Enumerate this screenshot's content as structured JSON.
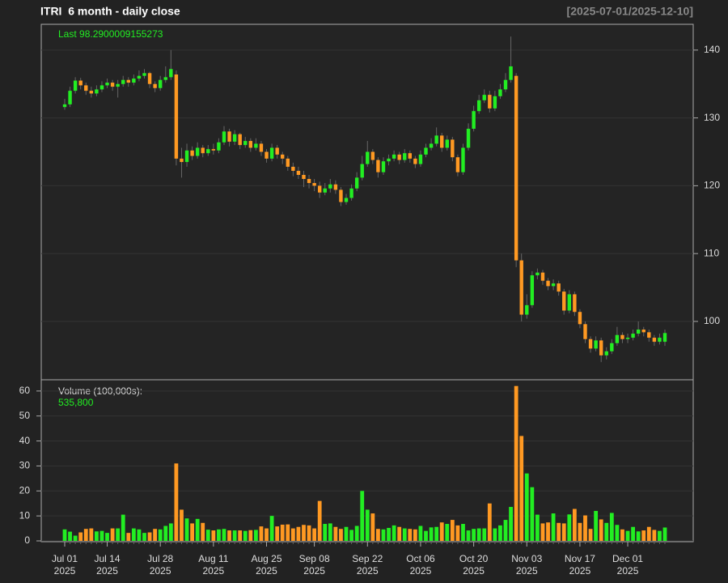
{
  "chart_data": [
    {
      "type": "candlestick",
      "title": "ITRI  6 month - daily close",
      "date_range": "[2025-07-01/2025-12-10]",
      "last_label": "Last 98.2900009155273",
      "up_color": "#22ee22",
      "down_color": "#ff9922",
      "grid": true,
      "categories": [
        {
          "month_day": "Jul 01",
          "year": "2025"
        },
        null,
        null,
        null,
        null,
        null,
        null,
        null,
        {
          "month_day": "Jul 14",
          "year": "2025"
        },
        null,
        null,
        null,
        null,
        null,
        null,
        null,
        null,
        null,
        {
          "month_day": "Jul 28",
          "year": "2025"
        },
        null,
        null,
        null,
        null,
        null,
        null,
        null,
        null,
        null,
        {
          "month_day": "Aug 11",
          "year": "2025"
        },
        null,
        null,
        null,
        null,
        null,
        null,
        null,
        null,
        null,
        {
          "month_day": "Aug 25",
          "year": "2025"
        },
        null,
        null,
        null,
        null,
        null,
        null,
        null,
        null,
        {
          "month_day": "Sep 08",
          "year": "2025"
        },
        null,
        null,
        null,
        null,
        null,
        null,
        null,
        null,
        null,
        {
          "month_day": "Sep 22",
          "year": "2025"
        },
        null,
        null,
        null,
        null,
        null,
        null,
        null,
        null,
        null,
        {
          "month_day": "Oct 06",
          "year": "2025"
        },
        null,
        null,
        null,
        null,
        null,
        null,
        null,
        null,
        null,
        {
          "month_day": "Oct 20",
          "year": "2025"
        },
        null,
        null,
        null,
        null,
        null,
        null,
        null,
        null,
        null,
        {
          "month_day": "Nov 03",
          "year": "2025"
        },
        null,
        null,
        null,
        null,
        null,
        null,
        null,
        null,
        null,
        {
          "month_day": "Nov 17",
          "year": "2025"
        },
        null,
        null,
        null,
        null,
        null,
        null,
        null,
        null,
        {
          "month_day": "Dec 01",
          "year": "2025"
        },
        null,
        null,
        null,
        null,
        null,
        null,
        null
      ],
      "open": [
        131.6,
        132.0,
        134.0,
        135.5,
        134.8,
        134.0,
        133.6,
        134.2,
        134.8,
        135.2,
        134.6,
        135.0,
        135.6,
        135.2,
        135.8,
        136.2,
        136.6,
        135.0,
        134.4,
        135.6,
        136.0,
        136.4,
        124.0,
        123.5,
        125.2,
        124.4,
        125.6,
        124.8,
        125.4,
        125.2,
        126.4,
        128.0,
        126.5,
        127.6,
        126.0,
        126.6,
        125.6,
        126.2,
        125.0,
        124.0,
        125.6,
        124.6,
        124.0,
        122.8,
        122.2,
        121.6,
        121.0,
        120.4,
        120.0,
        119.0,
        119.6,
        120.2,
        119.4,
        117.6,
        118.2,
        119.6,
        121.2,
        123.2,
        125.0,
        123.8,
        122.0,
        123.6,
        124.0,
        124.6,
        123.8,
        124.8,
        124.0,
        123.2,
        124.6,
        125.6,
        126.2,
        127.4,
        125.6,
        126.8,
        124.2,
        122.0,
        125.6,
        128.4,
        131.0,
        132.6,
        133.4,
        131.4,
        133.2,
        134.2,
        135.6,
        136.2,
        109.0,
        101.0,
        102.4,
        106.8,
        107.2,
        106.0,
        105.2,
        105.6,
        104.4,
        101.6,
        104.0,
        101.4,
        99.6,
        97.4,
        96.0,
        97.2,
        95.0,
        95.6,
        96.8,
        98.0,
        97.4,
        97.6,
        98.2,
        98.8,
        98.4,
        97.6,
        97.0,
        97.0
      ],
      "high": [
        132.8,
        134.6,
        136.0,
        135.9,
        135.2,
        134.6,
        134.8,
        135.4,
        135.8,
        135.6,
        135.6,
        136.2,
        136.0,
        136.4,
        137.0,
        137.2,
        136.8,
        135.4,
        136.2,
        137.6,
        140.0,
        137.0,
        125.6,
        126.2,
        125.8,
        126.4,
        126.0,
        126.0,
        126.2,
        127.0,
        128.8,
        128.4,
        128.2,
        127.8,
        127.2,
        127.0,
        127.0,
        126.6,
        125.4,
        126.2,
        126.0,
        125.0,
        124.4,
        123.4,
        122.8,
        122.2,
        121.6,
        121.0,
        120.6,
        120.4,
        121.0,
        120.8,
        119.8,
        118.8,
        120.2,
        122.0,
        124.4,
        126.6,
        125.4,
        124.2,
        124.2,
        124.6,
        125.2,
        125.0,
        125.4,
        125.2,
        124.4,
        125.2,
        126.2,
        127.0,
        128.6,
        127.8,
        127.4,
        127.2,
        124.6,
        126.2,
        129.2,
        131.8,
        133.4,
        134.2,
        134.0,
        134.0,
        135.0,
        136.6,
        142.0,
        136.6,
        110.0,
        104.0,
        107.4,
        107.8,
        107.6,
        106.4,
        106.2,
        106.0,
        104.8,
        104.6,
        104.4,
        101.8,
        100.0,
        97.8,
        97.8,
        97.6,
        96.2,
        97.4,
        99.2,
        98.4,
        98.2,
        98.8,
        100.0,
        99.2,
        98.8,
        98.0,
        98.2,
        98.8
      ],
      "low": [
        131.2,
        131.6,
        133.6,
        134.2,
        133.4,
        133.0,
        133.2,
        133.8,
        134.4,
        134.0,
        133.0,
        134.6,
        134.6,
        134.8,
        135.4,
        135.8,
        134.4,
        133.8,
        134.0,
        135.2,
        135.6,
        123.0,
        121.2,
        122.8,
        123.8,
        124.0,
        124.2,
        124.4,
        124.6,
        124.8,
        126.0,
        125.8,
        126.0,
        125.4,
        125.6,
        125.0,
        125.2,
        124.4,
        123.4,
        123.6,
        124.0,
        123.2,
        122.2,
        121.4,
        121.0,
        119.8,
        119.6,
        119.2,
        118.2,
        118.6,
        119.0,
        118.8,
        117.0,
        117.2,
        117.8,
        119.2,
        120.8,
        122.8,
        123.2,
        121.2,
        121.6,
        123.0,
        123.6,
        123.2,
        123.4,
        123.4,
        122.6,
        122.8,
        124.2,
        125.2,
        125.8,
        125.0,
        125.2,
        123.6,
        121.4,
        121.6,
        125.2,
        128.0,
        130.6,
        132.2,
        130.8,
        131.0,
        132.8,
        133.8,
        135.2,
        108.0,
        100.0,
        100.4,
        102.0,
        106.2,
        105.4,
        104.6,
        104.6,
        103.8,
        101.0,
        101.2,
        100.8,
        99.0,
        96.8,
        95.4,
        95.6,
        94.0,
        94.4,
        95.2,
        96.4,
        96.8,
        96.8,
        97.2,
        97.8,
        97.8,
        97.0,
        96.4,
        96.6,
        96.4
      ],
      "close": [
        132.0,
        134.0,
        135.5,
        134.8,
        134.0,
        133.6,
        134.2,
        134.8,
        135.2,
        134.6,
        135.0,
        135.6,
        135.2,
        135.8,
        136.2,
        136.6,
        135.0,
        134.4,
        135.6,
        136.0,
        137.2,
        124.0,
        123.5,
        125.2,
        124.4,
        125.6,
        124.8,
        125.4,
        125.2,
        126.4,
        128.0,
        126.5,
        127.6,
        126.0,
        126.6,
        125.6,
        126.2,
        125.0,
        124.0,
        125.6,
        124.6,
        124.0,
        122.8,
        122.2,
        121.6,
        121.0,
        120.4,
        120.0,
        119.0,
        119.6,
        120.2,
        119.4,
        117.6,
        118.2,
        119.6,
        121.2,
        123.2,
        125.0,
        123.8,
        122.0,
        123.6,
        124.0,
        124.6,
        123.8,
        124.8,
        124.0,
        123.2,
        124.6,
        125.6,
        126.2,
        127.4,
        125.6,
        126.8,
        124.2,
        122.0,
        125.6,
        128.4,
        131.0,
        132.6,
        133.4,
        131.4,
        133.2,
        134.2,
        135.6,
        137.6,
        109.0,
        101.0,
        102.4,
        106.8,
        107.2,
        106.0,
        105.2,
        105.6,
        104.4,
        101.6,
        104.0,
        101.4,
        99.6,
        97.4,
        96.0,
        97.2,
        95.0,
        95.6,
        96.8,
        98.0,
        97.4,
        97.6,
        98.2,
        98.8,
        98.4,
        97.6,
        97.0,
        97.6,
        98.2900009155273
      ],
      "ylim": [
        91.4,
        143.8
      ],
      "yticks": [
        100,
        110,
        120,
        130,
        140
      ]
    },
    {
      "type": "bar",
      "label": "Volume (100,000s):",
      "last_volume": {
        "value": 535800,
        "label": "535,800"
      },
      "values": [
        4.6,
        3.7,
        2.1,
        3.4,
        4.8,
        5.0,
        3.8,
        4.0,
        3.2,
        5.0,
        5.0,
        10.5,
        3.2,
        5.0,
        4.6,
        3.2,
        3.4,
        4.8,
        4.6,
        6.0,
        7.0,
        31,
        12.5,
        9,
        7,
        8.8,
        7.2,
        4.5,
        4.2,
        4.6,
        4.8,
        4.2,
        4.2,
        4.2,
        4.0,
        4.3,
        4.4,
        5.8,
        5.0,
        10,
        5.8,
        6.5,
        6.6,
        5.0,
        5.6,
        6.4,
        6.2,
        5.0,
        16,
        6.8,
        7.0,
        5.6,
        4.8,
        5.6,
        4.4,
        6.0,
        20,
        12.5,
        11,
        4.8,
        4.6,
        5.2,
        6.2,
        5.6,
        5.0,
        4.8,
        4.6,
        6.0,
        4.0,
        5.4,
        5.6,
        7.4,
        6.8,
        8.4,
        6.2,
        6.8,
        4.2,
        4.8,
        5.0,
        5.0,
        15,
        5.0,
        6.2,
        8.4,
        13.6,
        62,
        42,
        27,
        21.5,
        10.5,
        7.0,
        7.4,
        11,
        7.2,
        7.0,
        10.6,
        12.8,
        7.2,
        10.2,
        4.8,
        12,
        8.6,
        7.2,
        11.2,
        6.4,
        4.6,
        4.0,
        5.6,
        3.8,
        4.2,
        5.6,
        4.4,
        4.0,
        5.358
      ],
      "ylim": [
        0,
        64.5
      ],
      "yticks": [
        0,
        10,
        20,
        30,
        40,
        50,
        60
      ]
    }
  ]
}
